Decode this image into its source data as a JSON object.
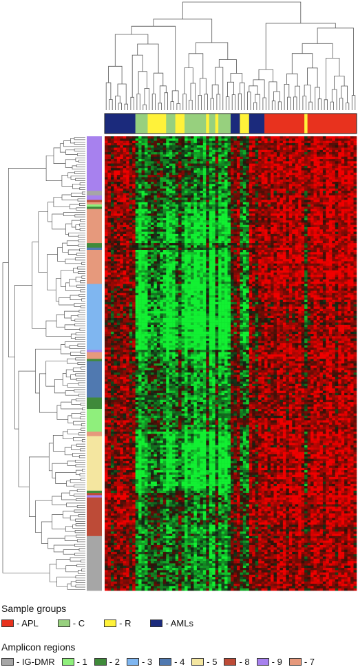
{
  "chart_data": {
    "type": "heatmap",
    "title": "",
    "xlabel": "",
    "ylabel": "",
    "color_scale": {
      "low": "#33ee33",
      "mid": "#000000",
      "high": "#ee2211"
    },
    "column_groups": [
      "AMLs",
      "AMLs",
      "AMLs",
      "AMLs",
      "AMLs",
      "AMLs",
      "AMLs",
      "AMLs",
      "AMLs",
      "AMLs",
      "C",
      "C",
      "C",
      "C",
      "R",
      "R",
      "R",
      "R",
      "R",
      "R",
      "C",
      "C",
      "C",
      "R",
      "R",
      "R",
      "C",
      "C",
      "C",
      "C",
      "C",
      "C",
      "C",
      "R",
      "C",
      "C",
      "R",
      "C",
      "C",
      "C",
      "C",
      "AMLs",
      "AMLs",
      "AMLs",
      "R",
      "R",
      "R",
      "AMLs",
      "AMLs",
      "AMLs",
      "AMLs",
      "AMLs",
      "APL",
      "APL",
      "APL",
      "APL",
      "APL",
      "APL",
      "APL",
      "APL",
      "APL",
      "APL",
      "APL",
      "APL",
      "APL",
      "R",
      "APL",
      "APL",
      "APL",
      "APL",
      "APL",
      "APL",
      "APL",
      "APL",
      "APL",
      "APL",
      "APL",
      "APL",
      "APL",
      "APL",
      "APL",
      "APL"
    ],
    "row_regions": [
      {
        "region": "9",
        "count": 24
      },
      {
        "region": "IG-DMR",
        "count": 2
      },
      {
        "region": "9",
        "count": 2
      },
      {
        "region": "8",
        "count": 1
      },
      {
        "region": "7",
        "count": 1
      },
      {
        "region": "1",
        "count": 1
      },
      {
        "region": "2",
        "count": 1
      },
      {
        "region": "7",
        "count": 15
      },
      {
        "region": "2",
        "count": 2
      },
      {
        "region": "4",
        "count": 1
      },
      {
        "region": "7",
        "count": 15
      },
      {
        "region": "3",
        "count": 29
      },
      {
        "region": "9",
        "count": 1
      },
      {
        "region": "7",
        "count": 3
      },
      {
        "region": "2",
        "count": 1
      },
      {
        "region": "4",
        "count": 16
      },
      {
        "region": "2",
        "count": 5
      },
      {
        "region": "1",
        "count": 10
      },
      {
        "region": "7",
        "count": 2
      },
      {
        "region": "5",
        "count": 24
      },
      {
        "region": "2",
        "count": 1
      },
      {
        "region": "8",
        "count": 1
      },
      {
        "region": "9",
        "count": 1
      },
      {
        "region": "8",
        "count": 17
      },
      {
        "region": "IG-DMR",
        "count": 24
      }
    ]
  },
  "legend": {
    "sample_groups": {
      "title": "Sample groups",
      "items": [
        {
          "key": "APL",
          "label": "- APL",
          "color": "#e8321e"
        },
        {
          "key": "C",
          "label": "- C",
          "color": "#97d07e"
        },
        {
          "key": "R",
          "label": "- R",
          "color": "#fff23a"
        },
        {
          "key": "AMLs",
          "label": "- AMLs",
          "color": "#1b2a7c"
        }
      ]
    },
    "amplicon_regions": {
      "title": "Amplicon regions",
      "items": [
        {
          "key": "IG-DMR",
          "label": "- IG-DMR",
          "color": "#a6a6a6"
        },
        {
          "key": "1",
          "label": "- 1",
          "color": "#8fef7c"
        },
        {
          "key": "2",
          "label": "- 2",
          "color": "#3f8a3a"
        },
        {
          "key": "3",
          "label": "- 3",
          "color": "#7fb6f0"
        },
        {
          "key": "4",
          "label": "- 4",
          "color": "#5079b0"
        },
        {
          "key": "5",
          "label": "- 5",
          "color": "#f4e6a0"
        },
        {
          "key": "8",
          "label": "- 8",
          "color": "#bd4b37"
        },
        {
          "key": "9",
          "label": "- 9",
          "color": "#a781ee"
        },
        {
          "key": "7",
          "label": "- 7",
          "color": "#e6997c"
        }
      ]
    }
  }
}
